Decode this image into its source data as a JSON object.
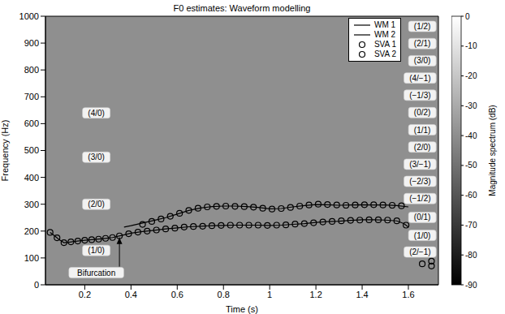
{
  "chart_data": {
    "type": "line",
    "title": "F0 estimates: Waveform modelling",
    "x_label": "Time (s)",
    "y_label": "Frequency (Hz)",
    "xlim": [
      0.03,
      1.73
    ],
    "xticks": [
      0.2,
      0.4,
      0.6,
      0.8,
      1,
      1.2,
      1.4,
      1.6
    ],
    "ylim": [
      0,
      1000
    ],
    "yticks": [
      0,
      100,
      200,
      300,
      400,
      500,
      600,
      700,
      800,
      900,
      1000
    ],
    "grid": false,
    "legend": "upper right",
    "series": [
      {
        "name": "WM 1",
        "type": "line",
        "color": "#000000",
        "line_style": "solid",
        "marker": "none",
        "x": [
          0.05,
          0.07,
          0.09,
          0.11,
          0.13,
          0.16,
          0.2,
          0.24,
          0.28,
          0.32,
          0.36,
          0.4,
          0.45,
          0.5,
          0.55,
          0.6,
          0.65,
          0.7,
          0.75,
          0.8,
          0.85,
          0.9,
          0.95,
          1.0,
          1.05,
          1.1,
          1.15,
          1.2,
          1.25,
          1.3,
          1.35,
          1.4,
          1.45,
          1.5,
          1.55,
          1.58,
          1.6
        ],
        "values": [
          195,
          182,
          168,
          157,
          158,
          162,
          166,
          169,
          172,
          176,
          184,
          192,
          198,
          203,
          208,
          212,
          216,
          218,
          220,
          221,
          222,
          222,
          222,
          221,
          222,
          225,
          228,
          232,
          235,
          237,
          240,
          242,
          242,
          241,
          238,
          228,
          215
        ]
      },
      {
        "name": "WM 2",
        "type": "line",
        "color": "#000000",
        "line_style": "solid",
        "marker": "none",
        "x": [
          0.37,
          0.4,
          0.45,
          0.5,
          0.55,
          0.6,
          0.65,
          0.7,
          0.75,
          0.8,
          0.85,
          0.9,
          0.95,
          1.0,
          1.05,
          1.1,
          1.15,
          1.2,
          1.25,
          1.3,
          1.35,
          1.4,
          1.45,
          1.5,
          1.55,
          1.6
        ],
        "values": [
          215,
          220,
          230,
          240,
          250,
          263,
          277,
          286,
          291,
          293,
          293,
          291,
          288,
          283,
          284,
          290,
          295,
          299,
          298,
          296,
          297,
          298,
          297,
          297,
          295,
          290
        ]
      },
      {
        "name": "SVA 1",
        "type": "scatter",
        "color": "#000000",
        "marker": "circle",
        "x": [
          0.05,
          0.08,
          0.11,
          0.14,
          0.17,
          0.2,
          0.23,
          0.26,
          0.29,
          0.32,
          0.35,
          0.39,
          0.43,
          0.47,
          0.51,
          0.55,
          0.59,
          0.63,
          0.67,
          0.71,
          0.75,
          0.79,
          0.83,
          0.87,
          0.91,
          0.95,
          0.99,
          1.03,
          1.07,
          1.11,
          1.15,
          1.19,
          1.23,
          1.27,
          1.31,
          1.35,
          1.39,
          1.43,
          1.47,
          1.51,
          1.55,
          1.59,
          1.66
        ],
        "values": [
          195,
          175,
          157,
          160,
          163,
          166,
          168,
          170,
          173,
          176,
          182,
          190,
          196,
          200,
          204,
          208,
          211,
          215,
          217,
          218,
          220,
          221,
          222,
          222,
          222,
          222,
          221,
          222,
          223,
          226,
          228,
          231,
          234,
          236,
          238,
          240,
          241,
          242,
          242,
          241,
          238,
          222,
          78
        ]
      },
      {
        "name": "SVA 2",
        "type": "scatter",
        "color": "#000000",
        "marker": "circle",
        "x": [
          0.45,
          0.49,
          0.53,
          0.57,
          0.61,
          0.65,
          0.69,
          0.73,
          0.77,
          0.81,
          0.85,
          0.89,
          0.93,
          0.97,
          1.01,
          1.05,
          1.09,
          1.13,
          1.17,
          1.21,
          1.25,
          1.29,
          1.33,
          1.37,
          1.41,
          1.45,
          1.49,
          1.53,
          1.57,
          1.7,
          1.7
        ],
        "values": [
          225,
          236,
          245,
          255,
          266,
          277,
          285,
          290,
          292,
          293,
          292,
          291,
          289,
          285,
          282,
          284,
          288,
          293,
          297,
          300,
          299,
          297,
          296,
          297,
          298,
          298,
          297,
          296,
          294,
          88,
          70
        ]
      }
    ],
    "annotations": [
      {
        "text": "(4/0)",
        "x": 0.25,
        "y": 640
      },
      {
        "text": "(3/0)",
        "x": 0.25,
        "y": 475
      },
      {
        "text": "(2/0)",
        "x": 0.25,
        "y": 300
      },
      {
        "text": "(1/0)",
        "x": 0.25,
        "y": 128
      },
      {
        "text": "Bifurcation",
        "x": 0.25,
        "y": 45,
        "arrow_to": [
          0.35,
          176
        ]
      },
      {
        "text": "(1/2)",
        "x": 1.72,
        "y": 962
      },
      {
        "text": "(2/1)",
        "x": 1.72,
        "y": 898
      },
      {
        "text": "(3/0)",
        "x": 1.72,
        "y": 834
      },
      {
        "text": "(4/−1)",
        "x": 1.72,
        "y": 770
      },
      {
        "text": "(−1/3)",
        "x": 1.72,
        "y": 706
      },
      {
        "text": "(0/2)",
        "x": 1.72,
        "y": 641
      },
      {
        "text": "(1/1)",
        "x": 1.72,
        "y": 577
      },
      {
        "text": "(2/0)",
        "x": 1.72,
        "y": 513
      },
      {
        "text": "(3/−1)",
        "x": 1.72,
        "y": 449
      },
      {
        "text": "(−2/3)",
        "x": 1.72,
        "y": 385
      },
      {
        "text": "(−1/2)",
        "x": 1.72,
        "y": 321
      },
      {
        "text": "(0/1)",
        "x": 1.72,
        "y": 251
      },
      {
        "text": "(1/0)",
        "x": 1.72,
        "y": 184
      },
      {
        "text": "(2/−1)",
        "x": 1.72,
        "y": 122
      }
    ],
    "colorbar": {
      "label": "Magnitude spectrum (dB)",
      "range": [
        -90,
        0
      ],
      "ticks": [
        0,
        -10,
        -20,
        -30,
        -40,
        -50,
        -60,
        -70,
        -80,
        -90
      ]
    }
  }
}
